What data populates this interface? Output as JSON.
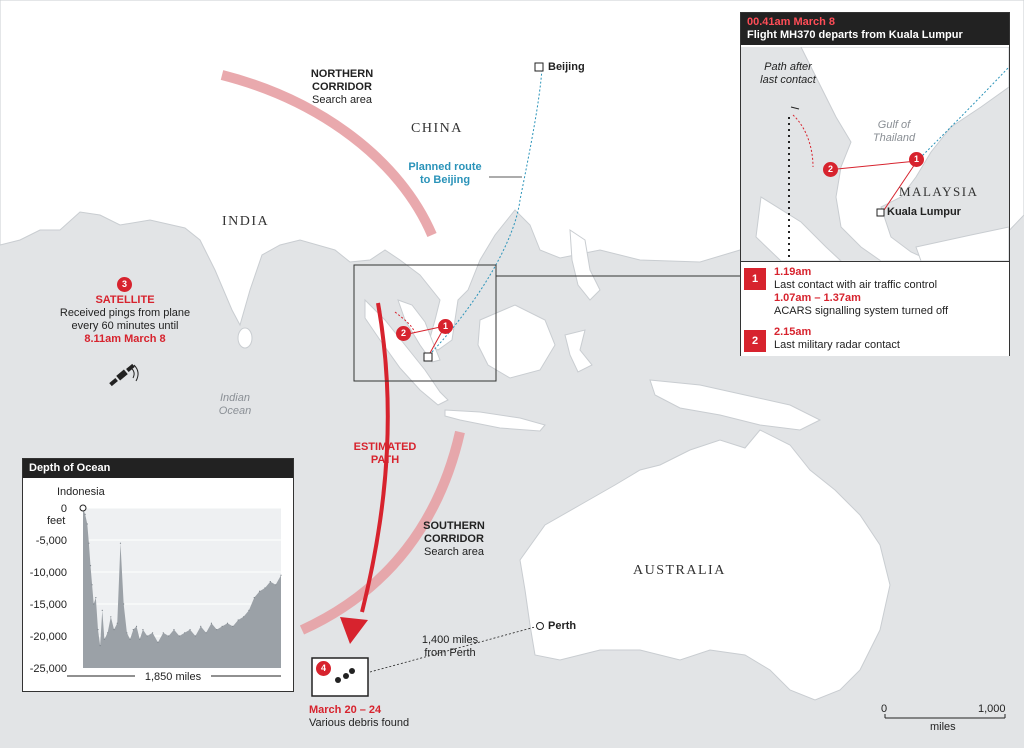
{
  "map": {
    "country_labels": {
      "china": "CHINA",
      "india": "INDIA",
      "australia": "AUSTRALIA",
      "malaysia": "MALAYSIA"
    },
    "ocean_label": {
      "line1": "Indian",
      "line2": "Ocean"
    },
    "northern_corridor": {
      "line1": "NORTHERN",
      "line2": "CORRIDOR",
      "line3": "Search area"
    },
    "southern_corridor": {
      "line1": "SOUTHERN",
      "line2": "CORRIDOR",
      "line3": "Search area"
    },
    "planned_route": {
      "line1": "Planned route",
      "line2": "to Beijing"
    },
    "estimated_path": {
      "line1": "ESTIMATED",
      "line2": "PATH"
    },
    "cities": {
      "beijing": "Beijing",
      "perth": "Perth",
      "kuala_lumpur": "Kuala Lumpur"
    },
    "perth_distance": {
      "line1": "1,400 miles",
      "line2": "from Perth"
    },
    "colors": {
      "accent_red": "#d7232e",
      "route_blue": "#2a93b9",
      "land": "#ffffff",
      "sea": "#e2e4e6",
      "chart_fill": "#9ba1a7"
    }
  },
  "satellite": {
    "number": "3",
    "title": "SATELLITE",
    "line1": "Received pings from plane",
    "line2": "every 60 minutes until",
    "time": "8.11am March 8",
    "icon": "satellite-icon"
  },
  "debris": {
    "number": "4",
    "date": "March 20 – 24",
    "text": "Various debris found"
  },
  "markers": {
    "one": "1",
    "two": "2"
  },
  "inset": {
    "time": "00.41am March 8",
    "title": "Flight MH370 departs from Kuala Lumpur",
    "path_note": {
      "line1": "Path after",
      "line2": "last contact"
    },
    "gulf": {
      "line1": "Gulf of",
      "line2": "Thailand"
    },
    "events": [
      {
        "number": "1",
        "time": "1.19am",
        "text": "Last contact with air traffic control",
        "time2": "1.07am – 1.37am",
        "text2": "ACARS signalling system turned off"
      },
      {
        "number": "2",
        "time": "2.15am",
        "text": "Last military radar contact"
      }
    ]
  },
  "scale": {
    "start": "0",
    "end": "1,000",
    "unit": "miles"
  },
  "chart_data": {
    "type": "area",
    "title": "Depth of Ocean",
    "ylabel": "feet",
    "xlabel": "1,850 miles",
    "annotation": "Indonesia",
    "ylim": [
      -25000,
      0
    ],
    "xlim": [
      0,
      1850
    ],
    "y_ticks": [
      "0",
      "-5,000",
      "-10,000",
      "-15,000",
      "-20,000",
      "-25,000"
    ],
    "y_tick_values": [
      0,
      -5000,
      -10000,
      -15000,
      -20000,
      -25000
    ],
    "x": [
      0,
      20,
      40,
      55,
      70,
      85,
      100,
      120,
      140,
      160,
      180,
      200,
      230,
      260,
      290,
      320,
      350,
      380,
      410,
      440,
      470,
      500,
      530,
      560,
      600,
      650,
      700,
      750,
      800,
      850,
      900,
      950,
      1000,
      1050,
      1100,
      1150,
      1200,
      1250,
      1300,
      1350,
      1400,
      1450,
      1500,
      1550,
      1600,
      1650,
      1700,
      1750,
      1800,
      1850
    ],
    "y": [
      0,
      -1000,
      -2500,
      -5500,
      -9000,
      -12000,
      -15000,
      -14000,
      -19000,
      -21500,
      -16000,
      -20500,
      -19500,
      -17000,
      -19000,
      -18000,
      -5500,
      -15000,
      -19500,
      -20500,
      -19000,
      -18500,
      -20500,
      -19000,
      -20000,
      -19500,
      -21000,
      -19500,
      -20000,
      -19000,
      -20000,
      -19500,
      -19000,
      -20000,
      -18500,
      -19500,
      -18000,
      -19000,
      -18500,
      -18000,
      -18500,
      -17500,
      -17000,
      -16000,
      -14000,
      -13000,
      -12500,
      -11500,
      -12000,
      -10500
    ]
  }
}
